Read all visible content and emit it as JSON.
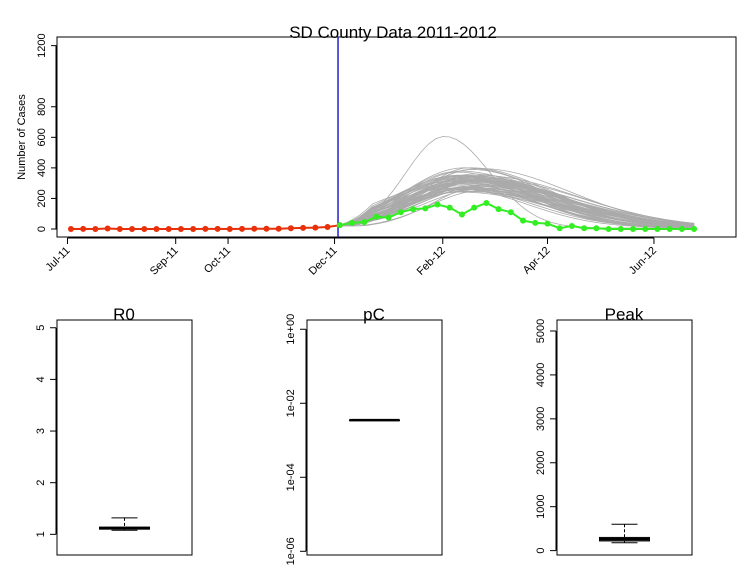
{
  "chart_data": [
    {
      "type": "line",
      "title": "SD County Data 2011-2012",
      "ylabel": "Number of Cases",
      "ylim": [
        0,
        1250
      ],
      "yticks": [
        0,
        200,
        400,
        600,
        800,
        1200
      ],
      "xticks": [
        {
          "label": "Jul-11",
          "date": "2011-07-01"
        },
        {
          "label": "Sep-11",
          "date": "2011-09-01"
        },
        {
          "label": "Oct-11",
          "date": "2011-10-01"
        },
        {
          "label": "Dec-11",
          "date": "2011-12-01"
        },
        {
          "label": "Feb-12",
          "date": "2012-02-01"
        },
        {
          "label": "Apr-12",
          "date": "2012-04-01"
        },
        {
          "label": "Jun-12",
          "date": "2012-06-01"
        }
      ],
      "vline_date": "2011-12-03",
      "series": [
        {
          "color": "#e8300a",
          "marker": "circle",
          "x": [
            "2011-07-03",
            "2011-07-10",
            "2011-07-17",
            "2011-07-24",
            "2011-07-31",
            "2011-08-07",
            "2011-08-14",
            "2011-08-21",
            "2011-08-28",
            "2011-09-04",
            "2011-09-11",
            "2011-09-18",
            "2011-09-25",
            "2011-10-02",
            "2011-10-09",
            "2011-10-16",
            "2011-10-23",
            "2011-10-30",
            "2011-11-06",
            "2011-11-13",
            "2011-11-20",
            "2011-11-27",
            "2011-12-04"
          ],
          "y": [
            0,
            1,
            0,
            3,
            0,
            0,
            0,
            0,
            0,
            0,
            0,
            1,
            1,
            0,
            1,
            2,
            2,
            2,
            5,
            7,
            9,
            13,
            25
          ]
        },
        {
          "color": "#33ee22",
          "marker": "circle",
          "x": [
            "2011-12-04",
            "2011-12-11",
            "2011-12-18",
            "2011-12-25",
            "2012-01-01",
            "2012-01-08",
            "2012-01-15",
            "2012-01-22",
            "2012-01-29",
            "2012-02-05",
            "2012-02-12",
            "2012-02-19",
            "2012-02-26",
            "2012-03-04",
            "2012-03-11",
            "2012-03-18",
            "2012-03-25",
            "2012-04-01",
            "2012-04-08",
            "2012-04-15",
            "2012-04-22",
            "2012-04-29",
            "2012-05-06",
            "2012-05-13",
            "2012-05-20",
            "2012-05-27",
            "2012-06-03",
            "2012-06-10",
            "2012-06-17",
            "2012-06-24"
          ],
          "y": [
            25,
            40,
            45,
            80,
            75,
            110,
            130,
            135,
            160,
            140,
            95,
            140,
            170,
            130,
            110,
            55,
            40,
            35,
            5,
            20,
            5,
            5,
            0,
            0,
            0,
            0,
            0,
            0,
            0,
            0
          ]
        }
      ],
      "forecast": {
        "color": "#aaaaaa",
        "start": "2011-12-03",
        "end": "2012-06-24",
        "peak_dates": [
          "2012-01-29",
          "2012-02-25"
        ],
        "peak_values": [
          180,
          600
        ]
      }
    },
    {
      "type": "box",
      "title": "R0",
      "yticks": [
        1,
        2,
        3,
        4,
        5
      ],
      "ylim": [
        0.6,
        5.15
      ],
      "box": {
        "whisker_low": 1.08,
        "q1": 1.1,
        "median": 1.12,
        "q3": 1.14,
        "whisker_high": 1.32
      }
    },
    {
      "type": "box",
      "title": "pC",
      "scale": "log",
      "yticks": [
        "1e+00",
        "1e-02",
        "1e-04",
        "1e-06"
      ],
      "ylim_log10": [
        -6.1,
        0.25
      ],
      "box": {
        "whisker_low": 0.0035,
        "q1": 0.0035,
        "median": 0.0035,
        "q3": 0.0035,
        "whisker_high": 0.0035
      }
    },
    {
      "type": "box",
      "title": "Peak",
      "yticks": [
        0,
        1000,
        2000,
        3000,
        4000,
        5000
      ],
      "ylim": [
        -100,
        5250
      ],
      "box": {
        "whisker_low": 180,
        "q1": 220,
        "median": 260,
        "q3": 300,
        "whisker_high": 600
      }
    }
  ]
}
